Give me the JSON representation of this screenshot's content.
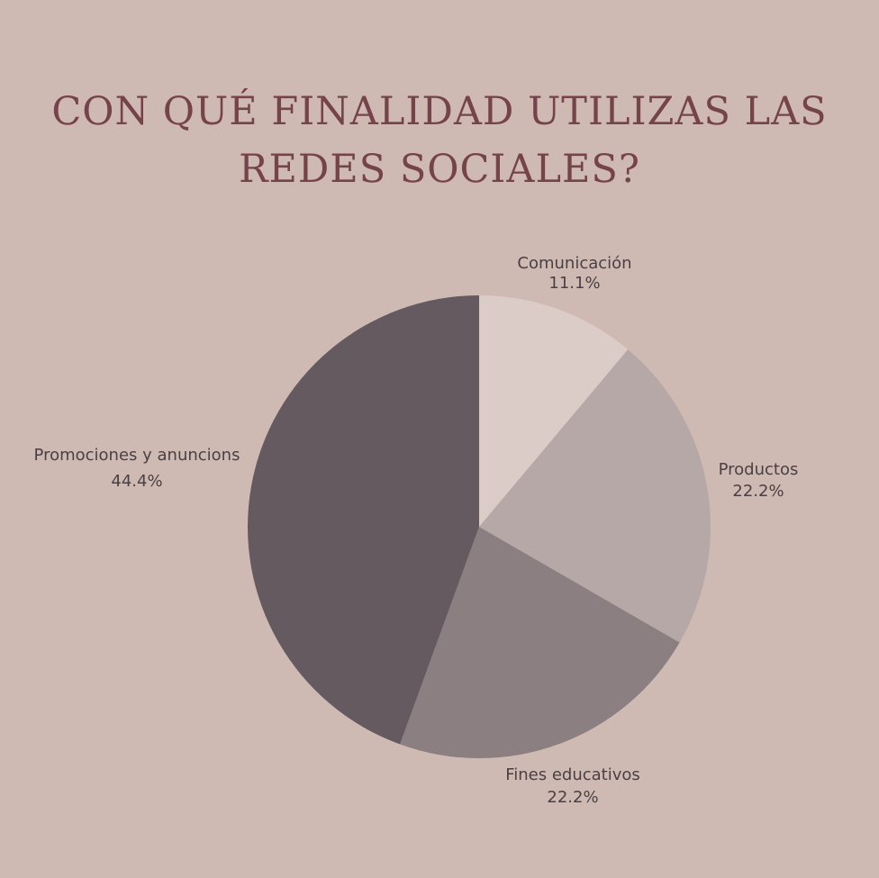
{
  "title_line1": "CON QUÉ FINALIDAD UTILIZAS LAS",
  "title_line2": "REDES SOCIALES?",
  "chart_data": {
    "type": "pie",
    "title": "CON QUÉ FINALIDAD UTILIZAS LAS REDES SOCIALES?",
    "slices": [
      {
        "label": "Comunicación",
        "value": 11.1,
        "value_label": "11.1%",
        "color": "#dcccc8"
      },
      {
        "label": "Productos",
        "value": 22.2,
        "value_label": "22.2%",
        "color": "#b5a8a7"
      },
      {
        "label": "Fines educativos",
        "value": 22.2,
        "value_label": "22.2%",
        "color": "#8b7f81"
      },
      {
        "label": "Promociones y anuncions",
        "value": 44.4,
        "value_label": "44.4%",
        "color": "#655a60"
      }
    ],
    "start": "12 o'clock",
    "direction": "clockwise",
    "legend": "none",
    "labels": "outside"
  },
  "colors": {
    "background": "#cfbab3",
    "title": "#75434a",
    "label_text": "#4a4044"
  }
}
